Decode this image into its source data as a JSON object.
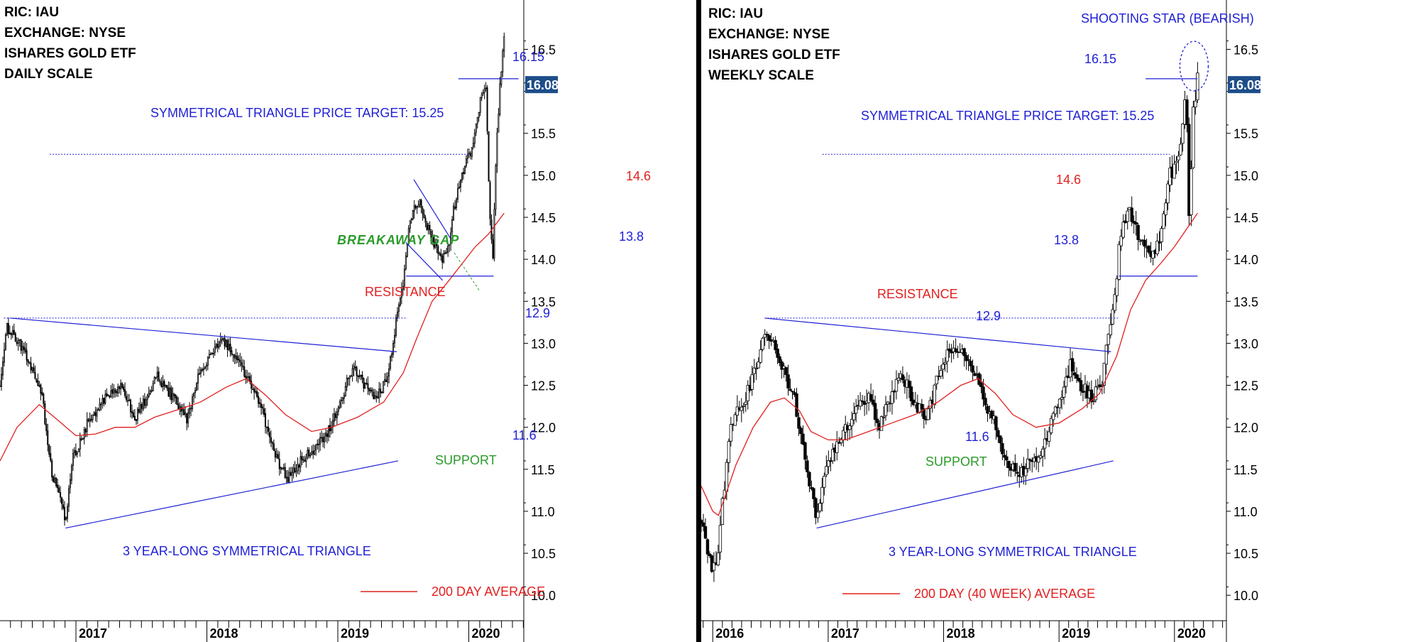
{
  "colors": {
    "candle": "#000000",
    "trendline": "#1f1fd6",
    "annotation_blue": "#1f1fd6",
    "moving_average": "#e0201f",
    "support_label": "#2a9a2a",
    "resistance_label": "#e0201f",
    "price_tag_bg": "#1d4e89",
    "price_tag_text": "#ffffff",
    "gap_label": "#2a9a2a"
  },
  "chart_data": [
    {
      "type": "candlestick",
      "info_lines": [
        "RIC: IAU",
        "EXCHANGE: NYSE",
        "ISHARES GOLD ETF",
        "DAILY SCALE"
      ],
      "x_range": [
        2016.42,
        2020.42
      ],
      "ylim": [
        9.9,
        16.8
      ],
      "x_ticks": [
        {
          "x": 2017.0,
          "label": "2017"
        },
        {
          "x": 2018.0,
          "label": "2018"
        },
        {
          "x": 2019.0,
          "label": "2019"
        },
        {
          "x": 2020.0,
          "label": "2020"
        }
      ],
      "y_ticks": [
        10.0,
        10.5,
        11.0,
        11.5,
        12.0,
        12.5,
        13.0,
        13.5,
        14.0,
        14.5,
        15.0,
        15.5,
        16.0,
        16.5
      ],
      "y_tick_labels": [
        "10.0",
        "10.5",
        "11.0",
        "11.5",
        "12.0",
        "12.5",
        "13.0",
        "13.5",
        "14.0",
        "14.5",
        "15.0",
        "15.5",
        "",
        "16.5"
      ],
      "last_price": "16.08",
      "price_anchors": [
        [
          2016.42,
          12.5
        ],
        [
          2016.47,
          13.2
        ],
        [
          2016.57,
          13.0
        ],
        [
          2016.74,
          12.4
        ],
        [
          2016.81,
          11.5
        ],
        [
          2016.92,
          10.9
        ],
        [
          2016.97,
          11.6
        ],
        [
          2017.1,
          12.1
        ],
        [
          2017.2,
          12.3
        ],
        [
          2017.35,
          12.5
        ],
        [
          2017.45,
          12.1
        ],
        [
          2017.62,
          12.6
        ],
        [
          2017.72,
          12.4
        ],
        [
          2017.85,
          12.1
        ],
        [
          2017.95,
          12.7
        ],
        [
          2018.05,
          12.9
        ],
        [
          2018.12,
          13.05
        ],
        [
          2018.2,
          12.9
        ],
        [
          2018.3,
          12.6
        ],
        [
          2018.4,
          12.3
        ],
        [
          2018.48,
          11.9
        ],
        [
          2018.55,
          11.55
        ],
        [
          2018.62,
          11.4
        ],
        [
          2018.72,
          11.6
        ],
        [
          2018.85,
          11.8
        ],
        [
          2018.95,
          12.0
        ],
        [
          2019.05,
          12.45
        ],
        [
          2019.12,
          12.75
        ],
        [
          2019.2,
          12.5
        ],
        [
          2019.3,
          12.35
        ],
        [
          2019.38,
          12.6
        ],
        [
          2019.42,
          12.95
        ],
        [
          2019.45,
          13.35
        ],
        [
          2019.5,
          13.7
        ],
        [
          2019.55,
          14.5
        ],
        [
          2019.62,
          14.7
        ],
        [
          2019.7,
          14.3
        ],
        [
          2019.8,
          14.0
        ],
        [
          2019.85,
          14.2
        ],
        [
          2019.88,
          14.55
        ],
        [
          2019.93,
          14.9
        ],
        [
          2019.98,
          15.15
        ],
        [
          2020.04,
          15.4
        ],
        [
          2020.09,
          15.95
        ],
        [
          2020.13,
          16.1
        ],
        [
          2020.16,
          14.5
        ],
        [
          2020.185,
          13.95
        ],
        [
          2020.2,
          15.0
        ],
        [
          2020.24,
          16.1
        ],
        [
          2020.27,
          16.65
        ]
      ],
      "moving_average": [
        [
          2016.42,
          11.6
        ],
        [
          2016.55,
          12.0
        ],
        [
          2016.72,
          12.27
        ],
        [
          2016.85,
          12.1
        ],
        [
          2017.0,
          11.9
        ],
        [
          2017.15,
          11.92
        ],
        [
          2017.3,
          12.0
        ],
        [
          2017.45,
          12.0
        ],
        [
          2017.6,
          12.12
        ],
        [
          2017.8,
          12.22
        ],
        [
          2017.95,
          12.3
        ],
        [
          2018.15,
          12.48
        ],
        [
          2018.3,
          12.58
        ],
        [
          2018.45,
          12.38
        ],
        [
          2018.6,
          12.15
        ],
        [
          2018.8,
          11.95
        ],
        [
          2018.95,
          12.0
        ],
        [
          2019.15,
          12.12
        ],
        [
          2019.35,
          12.3
        ],
        [
          2019.5,
          12.65
        ],
        [
          2019.6,
          13.05
        ],
        [
          2019.72,
          13.5
        ],
        [
          2019.85,
          13.75
        ],
        [
          2019.95,
          13.95
        ],
        [
          2020.05,
          14.15
        ],
        [
          2020.15,
          14.3
        ],
        [
          2020.27,
          14.55
        ]
      ],
      "resistance_line": [
        [
          2016.5,
          13.3
        ],
        [
          2019.45,
          12.9
        ]
      ],
      "support_line": [
        [
          2016.92,
          10.8
        ],
        [
          2019.46,
          11.6
        ]
      ],
      "price_target_line": {
        "y": 15.25,
        "x_from": 2016.8,
        "x_to": 2020.0
      },
      "resistance_level_line": {
        "y": 13.3,
        "x_from": 2016.45,
        "x_to": 2019.53
      },
      "channel": {
        "upper": [
          [
            2019.58,
            14.95
          ],
          [
            2019.86,
            14.25
          ]
        ],
        "lower": [
          [
            2019.52,
            14.2
          ],
          [
            2019.8,
            13.75
          ]
        ]
      },
      "level_16_15": {
        "y": 16.15,
        "x_from": 2019.92,
        "x_to": 2020.38
      },
      "level_13_8": {
        "y": 13.8,
        "x_from": 2019.52,
        "x_to": 2020.19
      },
      "labels": {
        "level_16_15": "16.15",
        "price_target": "SYMMETRICAL TRIANGLE PRICE TARGET: 15.25",
        "level_14_6": "14.6",
        "breakaway_gap": "BREAKAWAY GAP",
        "level_13_8": "13.8",
        "resistance": "RESISTANCE",
        "level_12_9": "12.9",
        "level_11_6": "11.6",
        "support": "SUPPORT",
        "pattern": "3 YEAR-LONG SYMMETRICAL TRIANGLE",
        "legend": "200 DAY AVERAGE"
      }
    },
    {
      "type": "candlestick",
      "info_lines": [
        "RIC: IAU",
        "EXCHANGE: NYSE",
        "ISHARES GOLD ETF",
        "WEEKLY SCALE"
      ],
      "x_range": [
        2015.9,
        2020.45
      ],
      "ylim": [
        9.9,
        16.8
      ],
      "x_ticks": [
        {
          "x": 2016.0,
          "label": "2016"
        },
        {
          "x": 2017.0,
          "label": "2017"
        },
        {
          "x": 2018.0,
          "label": "2018"
        },
        {
          "x": 2019.0,
          "label": "2019"
        },
        {
          "x": 2020.0,
          "label": "2020"
        }
      ],
      "y_ticks": [
        10.0,
        10.5,
        11.0,
        11.5,
        12.0,
        12.5,
        13.0,
        13.5,
        14.0,
        14.5,
        15.0,
        15.5,
        16.0,
        16.5
      ],
      "y_tick_labels": [
        "10.0",
        "10.5",
        "11.0",
        "11.5",
        "12.0",
        "12.5",
        "13.0",
        "13.5",
        "14.0",
        "14.5",
        "15.0",
        "15.5",
        "",
        "16.5"
      ],
      "last_price": "16.08",
      "price_anchors": [
        [
          2015.9,
          10.9
        ],
        [
          2015.95,
          10.5
        ],
        [
          2016.0,
          10.25
        ],
        [
          2016.05,
          10.6
        ],
        [
          2016.1,
          11.3
        ],
        [
          2016.15,
          12.0
        ],
        [
          2016.3,
          12.4
        ],
        [
          2016.45,
          13.1
        ],
        [
          2016.55,
          12.9
        ],
        [
          2016.7,
          12.4
        ],
        [
          2016.8,
          11.6
        ],
        [
          2016.9,
          10.95
        ],
        [
          2017.0,
          11.6
        ],
        [
          2017.15,
          12.0
        ],
        [
          2017.35,
          12.4
        ],
        [
          2017.45,
          12.0
        ],
        [
          2017.62,
          12.7
        ],
        [
          2017.75,
          12.3
        ],
        [
          2017.85,
          12.1
        ],
        [
          2018.0,
          12.85
        ],
        [
          2018.15,
          12.95
        ],
        [
          2018.3,
          12.55
        ],
        [
          2018.45,
          12.0
        ],
        [
          2018.55,
          11.55
        ],
        [
          2018.65,
          11.45
        ],
        [
          2018.85,
          11.75
        ],
        [
          2019.0,
          12.3
        ],
        [
          2019.1,
          12.75
        ],
        [
          2019.2,
          12.45
        ],
        [
          2019.3,
          12.35
        ],
        [
          2019.38,
          12.6
        ],
        [
          2019.42,
          13.0
        ],
        [
          2019.47,
          13.4
        ],
        [
          2019.55,
          14.5
        ],
        [
          2019.62,
          14.55
        ],
        [
          2019.72,
          14.2
        ],
        [
          2019.82,
          14.0
        ],
        [
          2019.88,
          14.3
        ],
        [
          2019.95,
          15.0
        ],
        [
          2020.02,
          15.1
        ],
        [
          2020.05,
          15.4
        ],
        [
          2020.1,
          16.1
        ],
        [
          2020.13,
          14.3
        ],
        [
          2020.16,
          15.7
        ],
        [
          2020.2,
          16.15
        ]
      ],
      "moving_average": [
        [
          2015.9,
          11.3
        ],
        [
          2016.0,
          11.0
        ],
        [
          2016.05,
          10.95
        ],
        [
          2016.2,
          11.55
        ],
        [
          2016.35,
          12.0
        ],
        [
          2016.5,
          12.3
        ],
        [
          2016.62,
          12.35
        ],
        [
          2016.75,
          12.2
        ],
        [
          2016.85,
          11.95
        ],
        [
          2017.0,
          11.85
        ],
        [
          2017.15,
          11.85
        ],
        [
          2017.35,
          11.95
        ],
        [
          2017.55,
          12.05
        ],
        [
          2017.75,
          12.15
        ],
        [
          2017.95,
          12.3
        ],
        [
          2018.15,
          12.5
        ],
        [
          2018.3,
          12.58
        ],
        [
          2018.45,
          12.4
        ],
        [
          2018.6,
          12.15
        ],
        [
          2018.8,
          12.0
        ],
        [
          2019.0,
          12.05
        ],
        [
          2019.2,
          12.22
        ],
        [
          2019.35,
          12.4
        ],
        [
          2019.5,
          12.85
        ],
        [
          2019.62,
          13.4
        ],
        [
          2019.75,
          13.75
        ],
        [
          2019.88,
          13.95
        ],
        [
          2020.0,
          14.15
        ],
        [
          2020.1,
          14.35
        ],
        [
          2020.2,
          14.55
        ]
      ],
      "resistance_line": [
        [
          2016.45,
          13.3
        ],
        [
          2019.45,
          12.9
        ]
      ],
      "support_line": [
        [
          2016.9,
          10.8
        ],
        [
          2019.47,
          11.6
        ]
      ],
      "price_target_line": {
        "y": 15.25,
        "x_from": 2016.95,
        "x_to": 2019.96
      },
      "resistance_level_line": {
        "y": 13.3,
        "x_from": 2016.45,
        "x_to": 2019.52
      },
      "level_16_15": {
        "y": 16.15,
        "x_from": 2019.75,
        "x_to": 2020.2
      },
      "level_13_8": {
        "y": 13.8,
        "x_from": 2019.52,
        "x_to": 2020.2
      },
      "highlight_ellipse": {
        "x": 2020.17,
        "y": 16.3
      },
      "labels": {
        "shooting_star": "SHOOTING STAR (BEARISH)",
        "level_16_15": "16.15",
        "price_target": "SYMMETRICAL TRIANGLE PRICE TARGET: 15.25",
        "level_14_6": "14.6",
        "level_13_8": "13.8",
        "resistance": "RESISTANCE",
        "level_12_9": "12.9",
        "level_11_6": "11.6",
        "support": "SUPPORT",
        "pattern": "3 YEAR-LONG SYMMETRICAL TRIANGLE",
        "legend": "200 DAY (40 WEEK) AVERAGE"
      }
    }
  ]
}
